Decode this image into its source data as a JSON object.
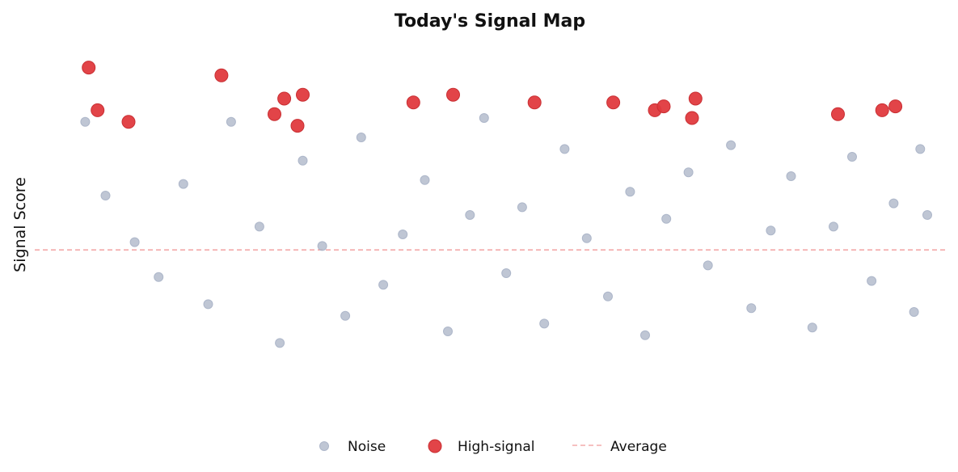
{
  "chart_data": {
    "type": "scatter",
    "title": "Today's Signal Map",
    "xlabel": "",
    "ylabel": "Signal Score",
    "xlim": [
      -1.5,
      101.5
    ],
    "ylim": [
      -4.6,
      5.4
    ],
    "grid": false,
    "legend_position": "bottom",
    "average": 0,
    "series": [
      {
        "name": "Noise",
        "color": "#a9b3c6",
        "points": [
          [
            4.2,
            3.3
          ],
          [
            6.5,
            1.4
          ],
          [
            9.8,
            0.2
          ],
          [
            12.5,
            -0.7
          ],
          [
            15.3,
            1.7
          ],
          [
            18.1,
            -1.4
          ],
          [
            20.7,
            3.3
          ],
          [
            23.9,
            0.6
          ],
          [
            26.2,
            -2.4
          ],
          [
            28.8,
            2.3
          ],
          [
            31.0,
            0.1
          ],
          [
            33.6,
            -1.7
          ],
          [
            35.4,
            2.9
          ],
          [
            37.9,
            -0.9
          ],
          [
            40.1,
            0.4
          ],
          [
            42.6,
            1.8
          ],
          [
            45.2,
            -2.1
          ],
          [
            47.7,
            0.9
          ],
          [
            49.3,
            3.4
          ],
          [
            51.8,
            -0.6
          ],
          [
            53.6,
            1.1
          ],
          [
            56.1,
            -1.9
          ],
          [
            58.4,
            2.6
          ],
          [
            60.9,
            0.3
          ],
          [
            63.3,
            -1.2
          ],
          [
            65.8,
            1.5
          ],
          [
            67.5,
            -2.2
          ],
          [
            69.9,
            0.8
          ],
          [
            72.4,
            2.0
          ],
          [
            74.6,
            -0.4
          ],
          [
            77.2,
            2.7
          ],
          [
            79.5,
            -1.5
          ],
          [
            81.7,
            0.5
          ],
          [
            84.0,
            1.9
          ],
          [
            86.4,
            -2.0
          ],
          [
            88.8,
            0.6
          ],
          [
            90.9,
            2.4
          ],
          [
            93.1,
            -0.8
          ],
          [
            95.6,
            1.2
          ],
          [
            97.9,
            -1.6
          ],
          [
            99.4,
            0.9
          ],
          [
            98.6,
            2.6
          ]
        ]
      },
      {
        "name": "High-signal",
        "color": "#e03a3e",
        "points": [
          [
            4.6,
            4.7
          ],
          [
            5.6,
            3.6
          ],
          [
            9.1,
            3.3
          ],
          [
            19.6,
            4.5
          ],
          [
            25.6,
            3.5
          ],
          [
            26.7,
            3.9
          ],
          [
            28.2,
            3.2
          ],
          [
            28.8,
            4.0
          ],
          [
            41.3,
            3.8
          ],
          [
            45.8,
            4.0
          ],
          [
            55.0,
            3.8
          ],
          [
            63.9,
            3.8
          ],
          [
            68.6,
            3.6
          ],
          [
            69.6,
            3.7
          ],
          [
            72.8,
            3.4
          ],
          [
            73.2,
            3.9
          ],
          [
            89.3,
            3.5
          ],
          [
            94.3,
            3.6
          ],
          [
            95.8,
            3.7
          ]
        ]
      }
    ]
  },
  "legend": {
    "noise_label": "Noise",
    "signal_label": "High-signal",
    "average_label": "Average"
  }
}
